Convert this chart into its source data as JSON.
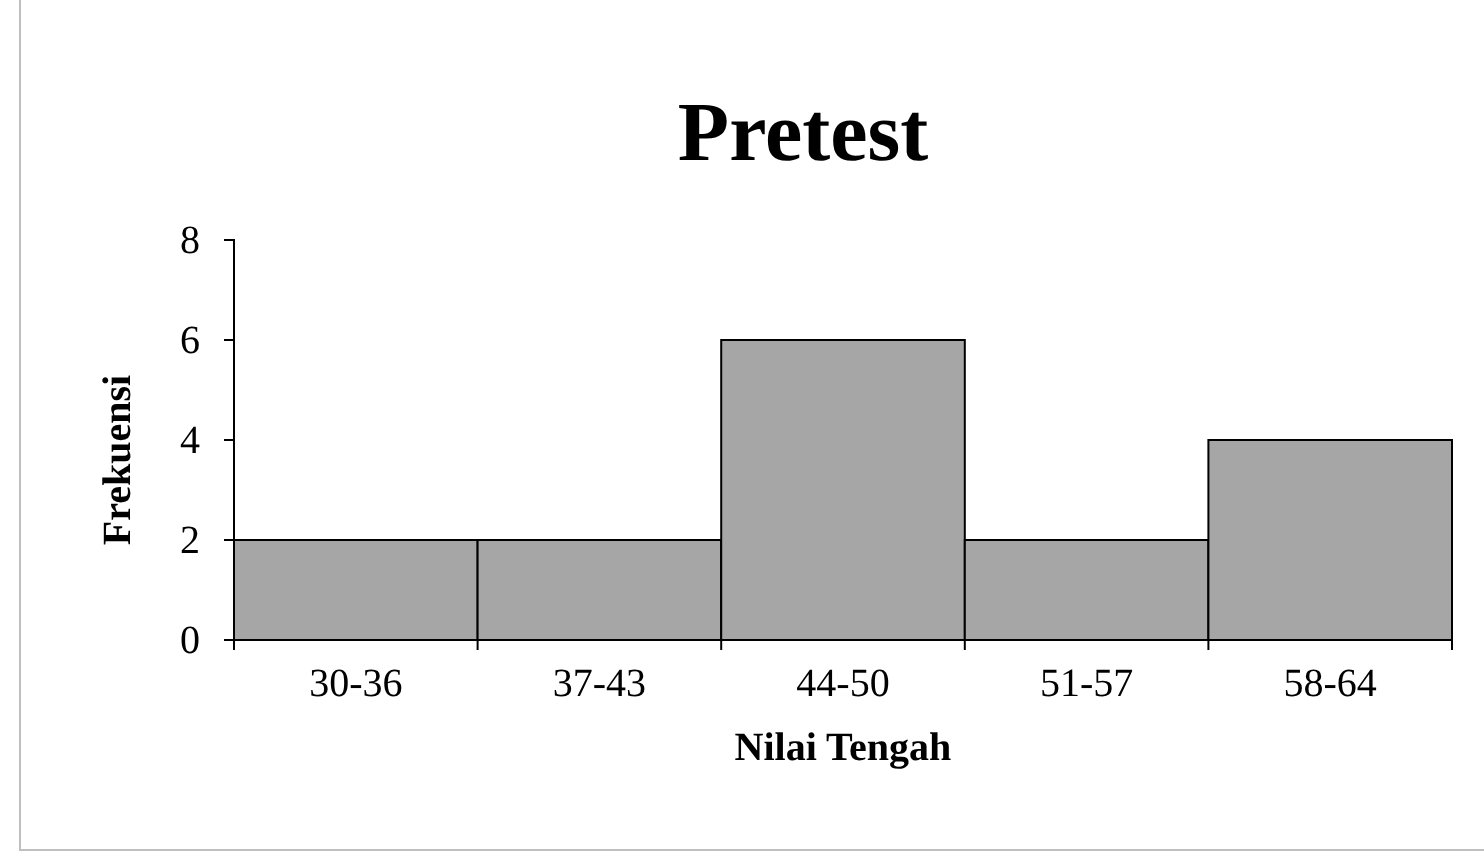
{
  "chart_data": {
    "type": "bar",
    "title": "Pretest",
    "xlabel": "Nilai Tengah",
    "ylabel": "Frekuensi",
    "categories": [
      "30-36",
      "37-43",
      "44-50",
      "51-57",
      "58-64"
    ],
    "values": [
      2,
      2,
      6,
      2,
      4
    ],
    "color": "#a6a6a6",
    "ylim": [
      0,
      8
    ],
    "yticks": [
      0,
      2,
      4,
      6,
      8
    ]
  }
}
